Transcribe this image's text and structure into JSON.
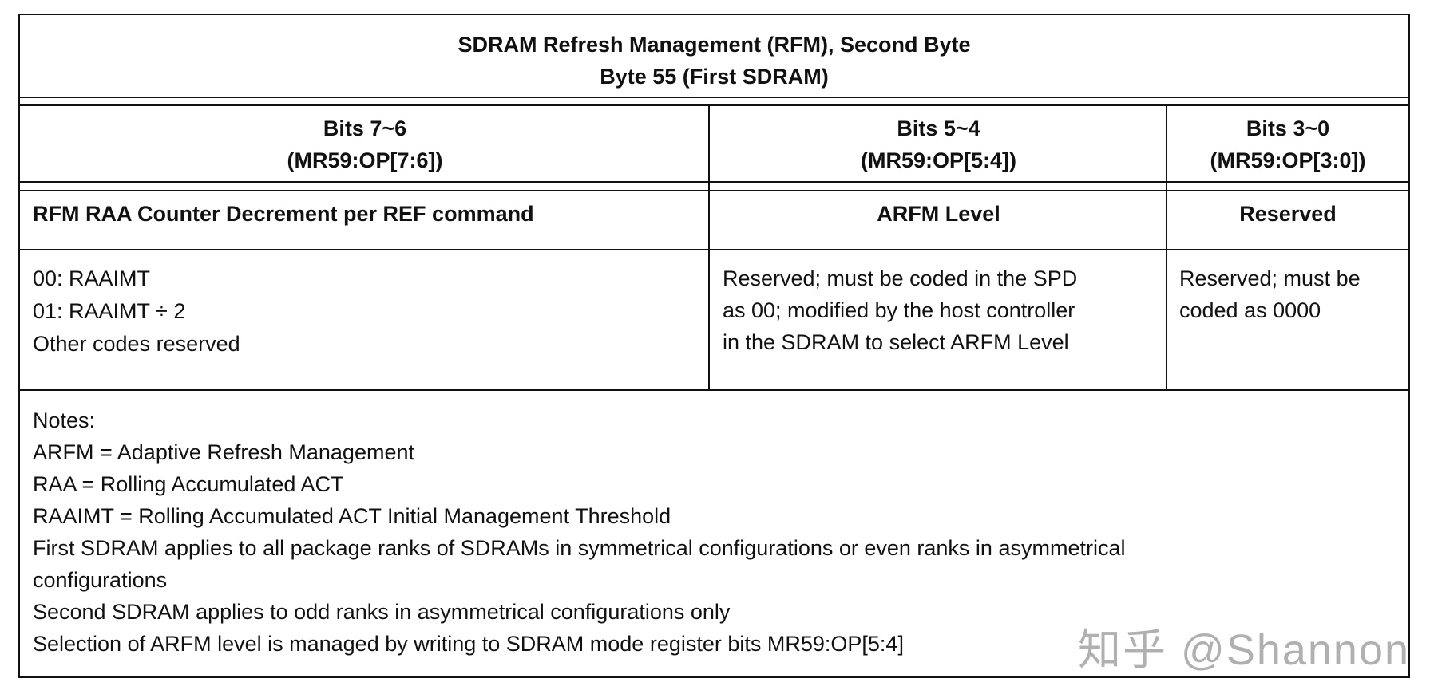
{
  "title": {
    "line1": "SDRAM Refresh Management (RFM), Second Byte",
    "line2": "Byte 55 (First SDRAM)"
  },
  "columns": [
    {
      "bits": "Bits 7~6",
      "register": "(MR59:OP[7:6])",
      "field": "RFM RAA Counter Decrement per REF command",
      "description": [
        "00: RAAIMT",
        "01: RAAIMT ÷ 2",
        "Other codes reserved"
      ]
    },
    {
      "bits": "Bits 5~4",
      "register": "(MR59:OP[5:4])",
      "field": "ARFM Level",
      "description": [
        "Reserved; must be coded in the SPD",
        "as 00; modified by the host controller",
        "in the SDRAM to select ARFM Level"
      ]
    },
    {
      "bits": "Bits 3~0",
      "register": "(MR59:OP[3:0])",
      "field": "Reserved",
      "description": [
        "Reserved; must be",
        "coded as 0000"
      ]
    }
  ],
  "notes": [
    "Notes:",
    "ARFM = Adaptive Refresh Management",
    "RAA = Rolling Accumulated ACT",
    "RAAIMT = Rolling Accumulated ACT Initial Management Threshold",
    "First SDRAM applies to all package ranks of SDRAMs in symmetrical configurations or even ranks in asymmetrical",
    "configurations",
    "Second SDRAM applies to odd ranks in asymmetrical configurations only",
    "Selection of ARFM level is managed by writing to SDRAM mode register bits MR59:OP[5:4]"
  ],
  "watermark": "知乎 @Shannon"
}
